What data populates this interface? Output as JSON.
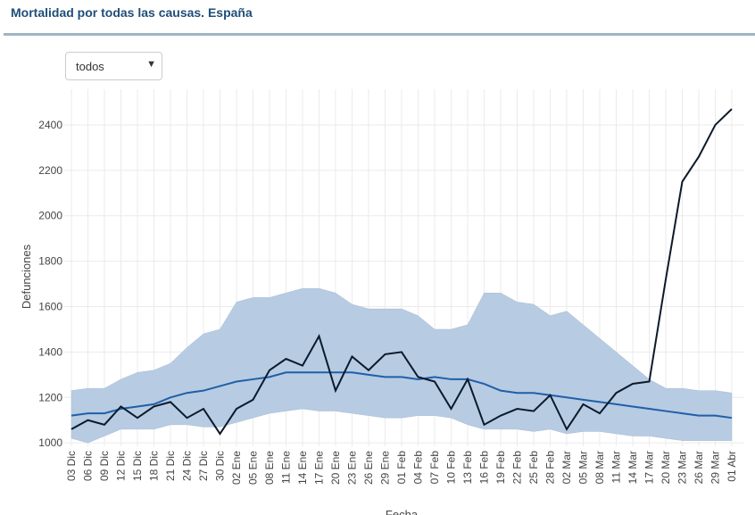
{
  "header": {
    "title": "Mortalidad por todas las causas. España"
  },
  "selector": {
    "value": "todos"
  },
  "chart_data": {
    "type": "line",
    "xlabel": "Fecha",
    "ylabel": "Defunciones",
    "categories": [
      "03 Dic",
      "06 Dic",
      "09 Dic",
      "12 Dic",
      "15 Dic",
      "18 Dic",
      "21 Dic",
      "24 Dic",
      "27 Dic",
      "30 Dic",
      "02 Ene",
      "05 Ene",
      "08 Ene",
      "11 Ene",
      "14 Ene",
      "17 Ene",
      "20 Ene",
      "23 Ene",
      "26 Ene",
      "29 Ene",
      "01 Feb",
      "04 Feb",
      "07 Feb",
      "10 Feb",
      "13 Feb",
      "16 Feb",
      "19 Feb",
      "22 Feb",
      "25 Feb",
      "28 Feb",
      "02 Mar",
      "05 Mar",
      "08 Mar",
      "11 Mar",
      "14 Mar",
      "17 Mar",
      "20 Mar",
      "23 Mar",
      "26 Mar",
      "29 Mar",
      "01 Abr"
    ],
    "band": {
      "color": "#b7cbe2",
      "lower": [
        1020,
        1000,
        1030,
        1060,
        1060,
        1060,
        1080,
        1080,
        1070,
        1070,
        1090,
        1110,
        1130,
        1140,
        1150,
        1140,
        1140,
        1130,
        1120,
        1110,
        1110,
        1120,
        1120,
        1110,
        1080,
        1060,
        1060,
        1060,
        1050,
        1060,
        1040,
        1050,
        1050,
        1040,
        1030,
        1030,
        1020,
        1010,
        1010,
        1010,
        1010
      ],
      "upper": [
        1230,
        1240,
        1240,
        1280,
        1310,
        1320,
        1350,
        1420,
        1480,
        1500,
        1620,
        1640,
        1640,
        1660,
        1680,
        1680,
        1660,
        1610,
        1590,
        1590,
        1590,
        1560,
        1500,
        1500,
        1520,
        1660,
        1660,
        1620,
        1610,
        1560,
        1580,
        1520,
        1460,
        1400,
        1340,
        1280,
        1240,
        1240,
        1230,
        1230,
        1220
      ]
    },
    "series": [
      {
        "color": "#1f5fa8",
        "values": [
          1120,
          1130,
          1130,
          1150,
          1160,
          1170,
          1200,
          1220,
          1230,
          1250,
          1270,
          1280,
          1290,
          1310,
          1310,
          1310,
          1310,
          1310,
          1300,
          1290,
          1290,
          1280,
          1290,
          1280,
          1280,
          1260,
          1230,
          1220,
          1220,
          1210,
          1200,
          1190,
          1180,
          1170,
          1160,
          1150,
          1140,
          1130,
          1120,
          1120,
          1110
        ]
      },
      {
        "color": "#0b1a2b",
        "values": [
          1060,
          1100,
          1080,
          1160,
          1110,
          1160,
          1180,
          1110,
          1150,
          1040,
          1150,
          1190,
          1320,
          1370,
          1340,
          1470,
          1230,
          1380,
          1320,
          1390,
          1400,
          1290,
          1270,
          1150,
          1280,
          1080,
          1120,
          1150,
          1140,
          1210,
          1060,
          1170,
          1130,
          1220,
          1260,
          1270,
          1720,
          2150,
          2260,
          2400,
          2470
        ]
      }
    ],
    "ylim": [
      985,
      2557
    ],
    "yticks": [
      1000,
      1200,
      1400,
      1600,
      1800,
      2000,
      2200,
      2400
    ],
    "grid": true
  }
}
